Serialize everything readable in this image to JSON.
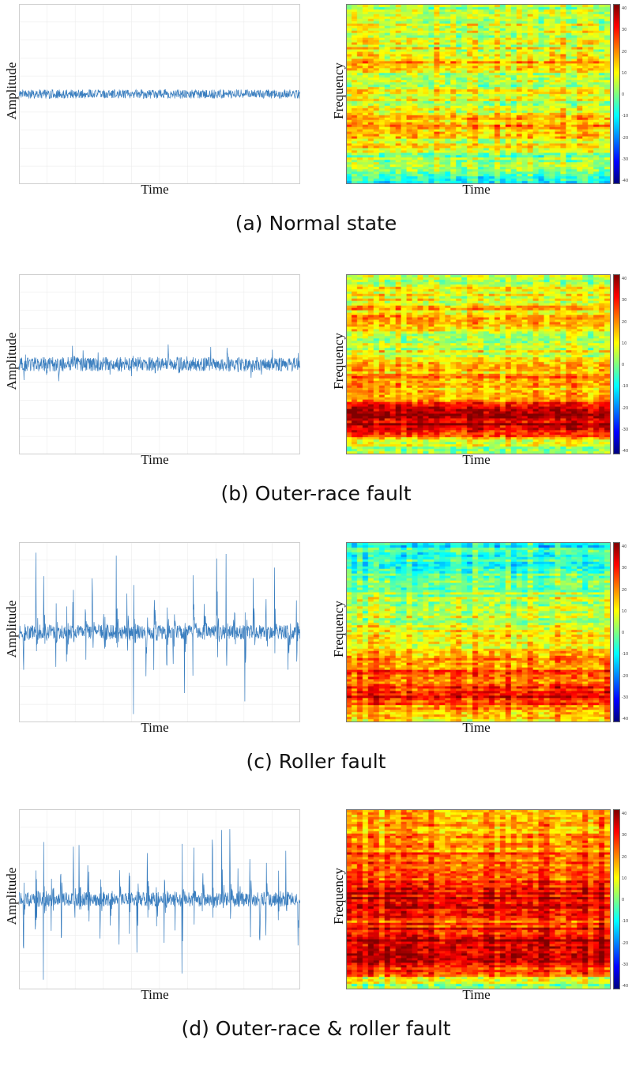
{
  "chart_data": [
    {
      "type": "line",
      "panel": "a",
      "caption": "(a) Normal state",
      "xlabel": "Time",
      "ylabel": "Amplitude",
      "noise_amplitude": 0.05,
      "impulse_count": 0,
      "impulse_amplitude": 0
    },
    {
      "type": "heatmap",
      "panel": "a",
      "xlabel": "Time",
      "ylabel": "Frequency",
      "colorbar_ticks": [
        "40",
        "30",
        "20",
        "10",
        "0",
        "-10",
        "-20",
        "-30",
        "-40"
      ],
      "band_profile": [
        0.55,
        0.55,
        0.6,
        0.6,
        0.58,
        0.62,
        0.66,
        0.72,
        0.6,
        0.56,
        0.6,
        0.58,
        0.6,
        0.64,
        0.7,
        0.72,
        0.62,
        0.58,
        0.52,
        0.5,
        0.45,
        0.42
      ]
    },
    {
      "type": "line",
      "panel": "b",
      "caption": "(b) Outer-race fault",
      "xlabel": "Time",
      "ylabel": "Amplitude",
      "noise_amplitude": 0.08,
      "impulse_count": 24,
      "impulse_amplitude": 0.2
    },
    {
      "type": "heatmap",
      "panel": "b",
      "xlabel": "Time",
      "ylabel": "Frequency",
      "colorbar_ticks": [
        "40",
        "30",
        "20",
        "10",
        "0",
        "-10",
        "-20",
        "-30",
        "-40"
      ],
      "band_profile": [
        0.55,
        0.56,
        0.6,
        0.62,
        0.66,
        0.7,
        0.64,
        0.58,
        0.56,
        0.6,
        0.62,
        0.66,
        0.72,
        0.7,
        0.64,
        0.84,
        0.92,
        0.94,
        0.9,
        0.7,
        0.52,
        0.45
      ]
    },
    {
      "type": "line",
      "panel": "c",
      "caption": "(c) Roller fault",
      "xlabel": "Time",
      "ylabel": "Amplitude",
      "noise_amplitude": 0.08,
      "impulse_count": 28,
      "impulse_amplitude": 1.0
    },
    {
      "type": "heatmap",
      "panel": "c",
      "xlabel": "Time",
      "ylabel": "Frequency",
      "colorbar_ticks": [
        "40",
        "30",
        "20",
        "10",
        "0",
        "-10",
        "-20",
        "-30",
        "-40"
      ],
      "band_profile": [
        0.4,
        0.42,
        0.45,
        0.46,
        0.5,
        0.52,
        0.54,
        0.56,
        0.56,
        0.58,
        0.6,
        0.62,
        0.66,
        0.7,
        0.74,
        0.78,
        0.8,
        0.82,
        0.86,
        0.78,
        0.7,
        0.55
      ]
    },
    {
      "type": "line",
      "panel": "d",
      "caption": "(d) Outer-race & roller fault",
      "xlabel": "Time",
      "ylabel": "Amplitude",
      "noise_amplitude": 0.08,
      "impulse_count": 30,
      "impulse_amplitude": 1.0
    },
    {
      "type": "heatmap",
      "panel": "d",
      "xlabel": "Time",
      "ylabel": "Frequency",
      "colorbar_ticks": [
        "40",
        "30",
        "20",
        "10",
        "0",
        "-10",
        "-20",
        "-30",
        "-40"
      ],
      "band_profile": [
        0.7,
        0.72,
        0.74,
        0.76,
        0.76,
        0.78,
        0.8,
        0.82,
        0.84,
        0.86,
        0.92,
        0.94,
        0.86,
        0.8,
        0.88,
        0.94,
        0.96,
        0.94,
        0.9,
        0.78,
        0.58,
        0.5
      ]
    }
  ]
}
